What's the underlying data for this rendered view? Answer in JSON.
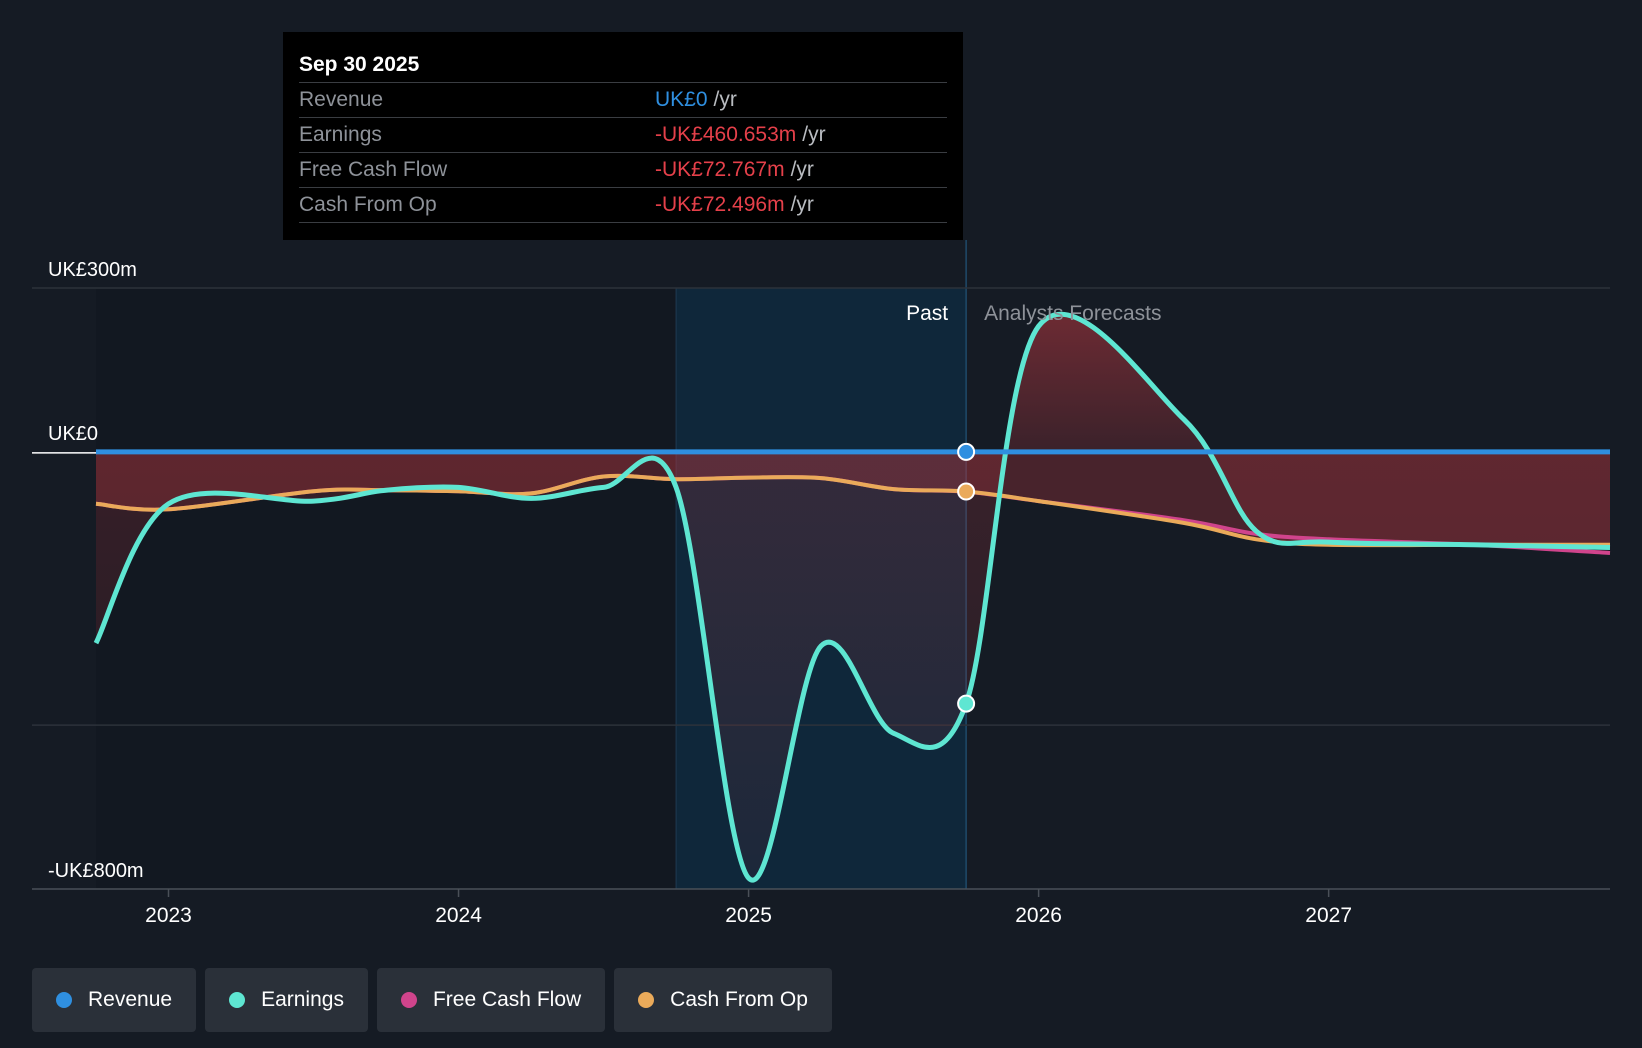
{
  "colors": {
    "revenue": "#2f8fe0",
    "earnings": "#5ee6d2",
    "free_cash_flow": "#d0448c",
    "cash_from_op": "#eaaa5a",
    "negative_fill": "#a8353d",
    "past_highlight": "#0f2a3e"
  },
  "tooltip": {
    "date": "Sep 30 2025",
    "rows": [
      {
        "label": "Revenue",
        "value": "UK£0",
        "unit": "/yr",
        "color": "#2f8fe0"
      },
      {
        "label": "Earnings",
        "value": "-UK£460.653m",
        "unit": "/yr",
        "color": "#e5404a"
      },
      {
        "label": "Free Cash Flow",
        "value": "-UK£72.767m",
        "unit": "/yr",
        "color": "#e5404a"
      },
      {
        "label": "Cash From Op",
        "value": "-UK£72.496m",
        "unit": "/yr",
        "color": "#e5404a"
      }
    ]
  },
  "legend": [
    {
      "label": "Revenue",
      "color": "#2f8fe0"
    },
    {
      "label": "Earnings",
      "color": "#5ee6d2"
    },
    {
      "label": "Free Cash Flow",
      "color": "#d0448c"
    },
    {
      "label": "Cash From Op",
      "color": "#eaaa5a"
    }
  ],
  "chart_data": {
    "type": "line",
    "title": "",
    "ylabel": "",
    "xlabel": "",
    "units": "UK£m",
    "ylim": [
      -800,
      300
    ],
    "xlim": [
      2022.75,
      2027.97
    ],
    "y_tick_labels": [
      {
        "value": 300,
        "label": "UK£300m"
      },
      {
        "value": 0,
        "label": "UK£0"
      },
      {
        "value": -800,
        "label": "-UK£800m"
      }
    ],
    "gridlines": [
      300,
      -500,
      -800
    ],
    "x_ticks": [
      2023,
      2024,
      2025,
      2026,
      2027
    ],
    "x_tick_labels": [
      "2023",
      "2024",
      "2025",
      "2026",
      "2027"
    ],
    "past_label": "Past",
    "forecast_label": "Analysts Forecasts",
    "past_region": [
      2024.75,
      2025.75
    ],
    "current_date": 2025.75,
    "series": [
      {
        "name": "Revenue",
        "key": "revenue",
        "x": [
          2022.75,
          2025.75,
          2027.97
        ],
        "values": [
          0,
          0,
          0
        ]
      },
      {
        "name": "Earnings",
        "key": "earnings",
        "x": [
          2022.75,
          2023.0,
          2023.5,
          2023.75,
          2024.0,
          2024.25,
          2024.5,
          2024.75,
          2025.0,
          2025.25,
          2025.5,
          2025.75,
          2026.0,
          2026.5,
          2026.75,
          2027.0,
          2027.5,
          2027.97
        ],
        "values": [
          -350,
          -95,
          -90,
          -70,
          -65,
          -85,
          -65,
          -65,
          -780,
          -355,
          -515,
          -460.653,
          230,
          60,
          -145,
          -165,
          -170,
          -175
        ]
      },
      {
        "name": "Free Cash Flow",
        "key": "free_cash_flow",
        "x": [
          2022.75,
          2023.0,
          2023.5,
          2023.75,
          2024.0,
          2024.25,
          2024.5,
          2024.75,
          2025.0,
          2025.25,
          2025.5,
          2025.75,
          2026.0,
          2026.5,
          2026.75,
          2027.0,
          2027.5,
          2027.97
        ],
        "values": [
          -95,
          -105,
          -72,
          -70,
          -72,
          -76,
          -45,
          -50,
          -47,
          -48,
          -68,
          -72.767,
          -90,
          -125,
          -150,
          -160,
          -170,
          -185
        ]
      },
      {
        "name": "Cash From Op",
        "key": "cash_from_op",
        "x": [
          2022.75,
          2023.0,
          2023.5,
          2023.75,
          2024.0,
          2024.25,
          2024.5,
          2024.75,
          2025.0,
          2025.25,
          2025.5,
          2025.75,
          2026.0,
          2026.5,
          2026.75,
          2027.0,
          2027.5,
          2027.97
        ],
        "values": [
          -95,
          -105,
          -72,
          -70,
          -72,
          -76,
          -45,
          -50,
          -47,
          -48,
          -68,
          -72.496,
          -90,
          -130,
          -160,
          -170,
          -170,
          -170
        ]
      }
    ]
  }
}
